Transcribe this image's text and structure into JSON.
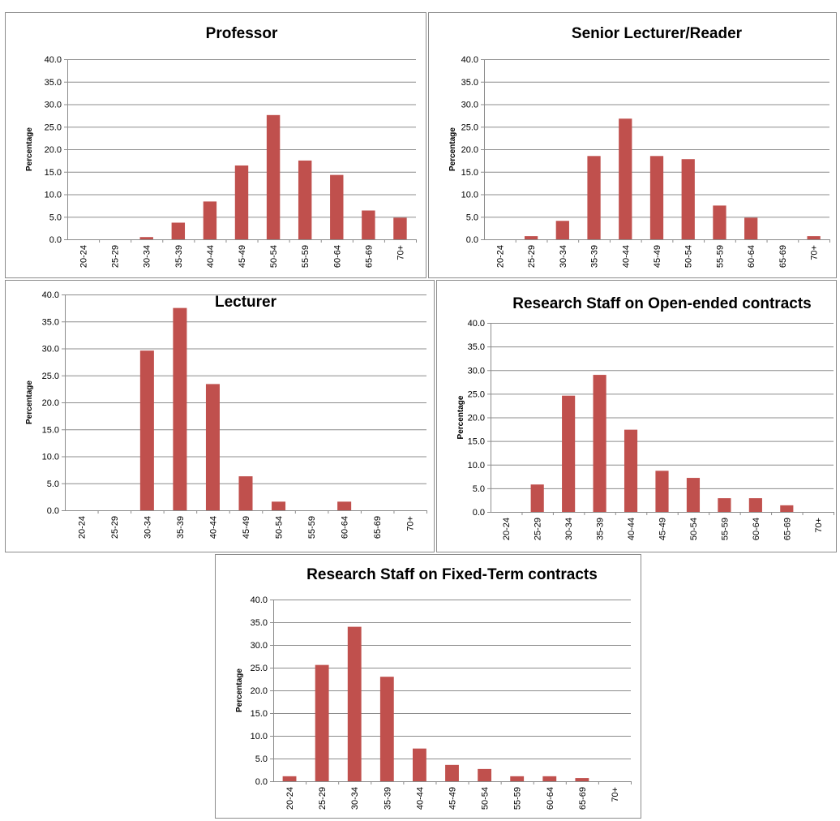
{
  "colors": {
    "bar": "#c0504d"
  },
  "chart_data": [
    {
      "type": "bar",
      "title": "Professor",
      "ylabel": "Percentage",
      "xlabel": "",
      "ylim": [
        0,
        40
      ],
      "yticks": [
        "0.0",
        "5.0",
        "10.0",
        "15.0",
        "20.0",
        "25.0",
        "30.0",
        "35.0",
        "40.0"
      ],
      "grid": true,
      "categories": [
        "20-24",
        "25-29",
        "30-34",
        "35-39",
        "40-44",
        "45-49",
        "50-54",
        "55-59",
        "60-64",
        "65-69",
        "70+"
      ],
      "values": [
        0,
        0,
        0.5,
        3.7,
        8.4,
        16.4,
        27.6,
        17.5,
        14.3,
        6.4,
        4.8
      ]
    },
    {
      "type": "bar",
      "title": "Senior Lecturer/Reader",
      "ylabel": "Percentage",
      "xlabel": "",
      "ylim": [
        0,
        40
      ],
      "yticks": [
        "0.0",
        "5.0",
        "10.0",
        "15.0",
        "20.0",
        "25.0",
        "30.0",
        "35.0",
        "40.0"
      ],
      "grid": true,
      "categories": [
        "20-24",
        "25-29",
        "30-34",
        "35-39",
        "40-44",
        "45-49",
        "50-54",
        "55-59",
        "60-64",
        "65-69",
        "70+"
      ],
      "values": [
        0,
        0.7,
        4.1,
        18.5,
        26.8,
        18.5,
        17.8,
        7.5,
        4.8,
        0,
        0.7
      ]
    },
    {
      "type": "bar",
      "title": "Lecturer",
      "ylabel": "Percentage",
      "xlabel": "",
      "ylim": [
        0,
        40
      ],
      "yticks": [
        "0.0",
        "5.0",
        "10.0",
        "15.0",
        "20.0",
        "25.0",
        "30.0",
        "35.0",
        "40.0"
      ],
      "grid": true,
      "categories": [
        "20-24",
        "25-29",
        "30-34",
        "35-39",
        "40-44",
        "45-49",
        "50-54",
        "55-59",
        "60-64",
        "65-69",
        "70+"
      ],
      "values": [
        0,
        0,
        29.6,
        37.5,
        23.4,
        6.3,
        1.6,
        0,
        1.6,
        0,
        0
      ]
    },
    {
      "type": "bar",
      "title": "Research Staff on Open-ended contracts",
      "ylabel": "Percentage",
      "xlabel": "",
      "ylim": [
        0,
        40
      ],
      "yticks": [
        "0.0",
        "5.0",
        "10.0",
        "15.0",
        "20.0",
        "25.0",
        "30.0",
        "35.0",
        "40.0"
      ],
      "grid": true,
      "categories": [
        "20-24",
        "25-29",
        "30-34",
        "35-39",
        "40-44",
        "45-49",
        "50-54",
        "55-59",
        "60-64",
        "65-69",
        "70+"
      ],
      "values": [
        0,
        5.8,
        24.6,
        29.0,
        17.4,
        8.7,
        7.2,
        2.9,
        2.9,
        1.4,
        0
      ]
    },
    {
      "type": "bar",
      "title": "Research Staff on Fixed-Term contracts",
      "ylabel": "Percentage",
      "xlabel": "",
      "ylim": [
        0,
        40
      ],
      "yticks": [
        "0.0",
        "5.0",
        "10.0",
        "15.0",
        "20.0",
        "25.0",
        "30.0",
        "35.0",
        "40.0"
      ],
      "grid": true,
      "categories": [
        "20-24",
        "25-29",
        "30-34",
        "35-39",
        "40-44",
        "45-49",
        "50-54",
        "55-59",
        "60-64",
        "65-69",
        "70+"
      ],
      "values": [
        1.1,
        25.6,
        34.0,
        23.0,
        7.2,
        3.6,
        2.7,
        1.1,
        1.1,
        0.7,
        0
      ]
    }
  ]
}
